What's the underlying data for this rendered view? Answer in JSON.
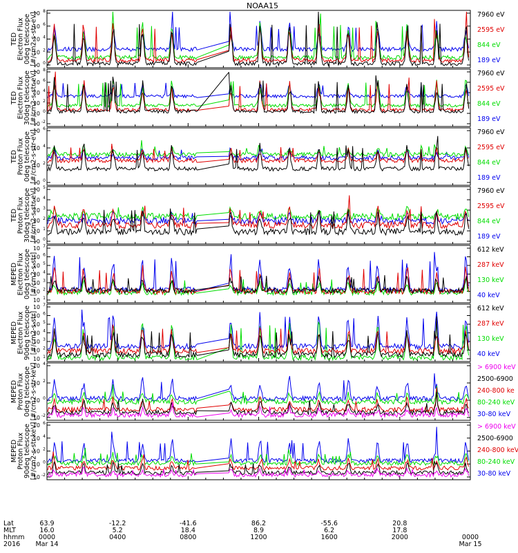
{
  "title": "NOAA15",
  "colors": {
    "black": "#000000",
    "red": "#e00000",
    "green": "#00dd00",
    "blue": "#0000ee",
    "magenta": "#ee00ee"
  },
  "panels": [
    {
      "ylabel": [
        "TED",
        "Electron Flux",
        "0deg telescope",
        "[#/cm2-s-str-eV]"
      ],
      "ticks": [
        "10",
        "10",
        "10",
        "10",
        "10"
      ],
      "exps": [
        "8",
        "6",
        "4",
        "2",
        "0"
      ],
      "extra_top": "",
      "legend": [
        {
          "text": "7960 eV",
          "color": "black"
        },
        {
          "text": "2595 eV",
          "color": "red"
        },
        {
          "text": "844 eV",
          "color": "green"
        },
        {
          "text": "189 eV",
          "color": "blue"
        }
      ]
    },
    {
      "ylabel": [
        "TED",
        "Electron Flux",
        "30deg telescope",
        "[#/cm2-s-str-eV]"
      ],
      "ticks": [
        "10",
        "10",
        "10",
        "10",
        "10",
        "10"
      ],
      "exps": [
        "8",
        "6",
        "4",
        "2",
        "0",
        "-2"
      ],
      "legend": [
        {
          "text": "7960 eV",
          "color": "black"
        },
        {
          "text": "2595 eV",
          "color": "red"
        },
        {
          "text": "844 eV",
          "color": "green"
        },
        {
          "text": "189 eV",
          "color": "blue"
        }
      ]
    },
    {
      "ylabel": [
        "TED",
        "Proton Flux",
        "0deg telescope",
        "[#/cm2-s-str-eV]"
      ],
      "ticks": [
        "10",
        "10",
        "10",
        "10"
      ],
      "exps": [
        "6",
        "4",
        "2",
        "0"
      ],
      "legend": [
        {
          "text": "7960 eV",
          "color": "black"
        },
        {
          "text": "2595 eV",
          "color": "red"
        },
        {
          "text": "844 eV",
          "color": "green"
        },
        {
          "text": "189 eV",
          "color": "blue"
        }
      ]
    },
    {
      "ylabel": [
        "TED",
        "Proton Flux",
        "30deg telescope",
        "[#/cm2-s-str-eV]"
      ],
      "ticks": [
        "10",
        "10",
        "10",
        "10",
        "10",
        "10"
      ],
      "exps": [
        "5",
        "4",
        "3",
        "2",
        "1",
        "0"
      ],
      "legend": [
        {
          "text": "7960 eV",
          "color": "black"
        },
        {
          "text": "2595 eV",
          "color": "red"
        },
        {
          "text": "844 eV",
          "color": "green"
        },
        {
          "text": "189 eV",
          "color": "blue"
        }
      ]
    },
    {
      "ylabel": [
        "MEPED",
        "Electron Flux",
        "0deg telescope",
        "[#/cm2-s-str]"
      ],
      "ticks": [
        "10",
        "10",
        "10",
        "10",
        "10",
        "10",
        "10"
      ],
      "exps": [
        "7",
        "6",
        "5",
        "4",
        "3",
        "2",
        "1"
      ],
      "legend": [
        {
          "text": "612 keV",
          "color": "black"
        },
        {
          "text": "287 keV",
          "color": "red"
        },
        {
          "text": "130 keV",
          "color": "green"
        },
        {
          "text": "40 keV",
          "color": "blue"
        }
      ]
    },
    {
      "ylabel": [
        "MEPED",
        "Electron Flux",
        "90deg telescope",
        "[#/cm2-s-str]"
      ],
      "ticks": [
        "10",
        "10",
        "10",
        "10",
        "10",
        "10",
        "10"
      ],
      "exps": [
        "7",
        "6",
        "5",
        "4",
        "3",
        "2",
        "1"
      ],
      "legend": [
        {
          "text": "612 keV",
          "color": "black"
        },
        {
          "text": "287 keV",
          "color": "red"
        },
        {
          "text": "130 keV",
          "color": "green"
        },
        {
          "text": "40 keV",
          "color": "blue"
        }
      ]
    },
    {
      "ylabel": [
        "MEPED",
        "Proton Flux",
        "0deg telescope",
        "[#/cm2-s-str-keV]"
      ],
      "ticks": [
        "10",
        "10",
        "10",
        "10"
      ],
      "exps": [
        "4",
        "2",
        "0",
        "-2"
      ],
      "legend": [
        {
          "text": "> 6900 keV",
          "color": "magenta"
        },
        {
          "text": "2500-6900",
          "color": "black"
        },
        {
          "text": "240-800 ke",
          "color": "red"
        },
        {
          "text": "80-240 keV",
          "color": "green"
        },
        {
          "text": "30-80 keV",
          "color": "blue"
        }
      ]
    },
    {
      "ylabel": [
        "MEPED",
        "Proton Flux",
        "90deg telescope",
        "[#/cm2-s-str-keV]"
      ],
      "ticks": [
        "10",
        "10",
        "10",
        "10",
        "10"
      ],
      "exps": [
        "6",
        "4",
        "2",
        "0",
        "-2"
      ],
      "legend": [
        {
          "text": "> 6900 keV",
          "color": "magenta"
        },
        {
          "text": "2500-6900",
          "color": "black"
        },
        {
          "text": "240-800 keV",
          "color": "red"
        },
        {
          "text": "80-240 keV",
          "color": "green"
        },
        {
          "text": "30-80 keV",
          "color": "blue"
        }
      ]
    }
  ],
  "xaxis": {
    "row_labels": [
      "Lat",
      "MLT",
      "hhmm",
      "2016"
    ],
    "columns": [
      {
        "lat": "63.9",
        "mlt": "16.0",
        "hhmm": "0000",
        "date": "Mar 14"
      },
      {
        "lat": "-12.2",
        "mlt": "5.2",
        "hhmm": "0400",
        "date": ""
      },
      {
        "lat": "-41.6",
        "mlt": "18.4",
        "hhmm": "0800",
        "date": ""
      },
      {
        "lat": "86.2",
        "mlt": "8.9",
        "hhmm": "1200",
        "date": ""
      },
      {
        "lat": "-55.6",
        "mlt": "6.2",
        "hhmm": "1600",
        "date": ""
      },
      {
        "lat": "20.8",
        "mlt": "17.8",
        "hhmm": "2000",
        "date": ""
      },
      {
        "lat": "",
        "mlt": "",
        "hhmm": "0000",
        "date": "Mar 15"
      }
    ]
  },
  "chart_data": {
    "type": "line",
    "title": "NOAA15",
    "x_unit": "hours since 2016 Mar 14 00:00 UT",
    "xlim": [
      0,
      24
    ],
    "data_gap_hours": [
      9.0,
      10.0
    ],
    "y_scale": "log",
    "panels": [
      {
        "title": "TED Electron Flux 0deg telescope",
        "ylim_exp": [
          0,
          8
        ],
        "series": [
          {
            "name": "7960 eV",
            "color": "#000000",
            "baseline_exp": 0.4,
            "peak_exp": 7.5
          },
          {
            "name": "2595 eV",
            "color": "#e00000",
            "baseline_exp": 0.9,
            "peak_exp": 7.0
          },
          {
            "name": "844 eV",
            "color": "#00dd00",
            "baseline_exp": 1.3,
            "peak_exp": 7.0
          },
          {
            "name": "189 eV",
            "color": "#0000ee",
            "baseline_exp": 2.5,
            "peak_exp": 6.5
          }
        ]
      },
      {
        "title": "TED Electron Flux 30deg telescope",
        "ylim_exp": [
          -2,
          8
        ],
        "series": [
          {
            "name": "7960 eV",
            "color": "#000000",
            "baseline_exp": 0.5,
            "peak_exp": 7.0
          },
          {
            "name": "2595 eV",
            "color": "#e00000",
            "baseline_exp": 0.8,
            "peak_exp": 6.5
          },
          {
            "name": "844 eV",
            "color": "#00dd00",
            "baseline_exp": 1.6,
            "peak_exp": 6.5
          },
          {
            "name": "189 eV",
            "color": "#0000ee",
            "baseline_exp": 3.3,
            "peak_exp": 6.0
          }
        ]
      },
      {
        "title": "TED Proton Flux 0deg telescope",
        "ylim_exp": [
          -2,
          6
        ],
        "series": [
          {
            "name": "7960 eV",
            "color": "#000000",
            "baseline_exp": 0.2,
            "peak_exp": 4.0
          },
          {
            "name": "2595 eV",
            "color": "#e00000",
            "baseline_exp": 1.4,
            "peak_exp": 3.5
          },
          {
            "name": "844 eV",
            "color": "#00dd00",
            "baseline_exp": 2.3,
            "peak_exp": 3.6
          },
          {
            "name": "189 eV",
            "color": "#0000ee",
            "baseline_exp": 1.8,
            "peak_exp": 3.2
          }
        ]
      },
      {
        "title": "TED Proton Flux 30deg telescope",
        "ylim_exp": [
          0,
          5
        ],
        "series": [
          {
            "name": "7960 eV",
            "color": "#000000",
            "baseline_exp": 1.0,
            "peak_exp": 3.2
          },
          {
            "name": "2595 eV",
            "color": "#e00000",
            "baseline_exp": 1.6,
            "peak_exp": 3.4
          },
          {
            "name": "844 eV",
            "color": "#00dd00",
            "baseline_exp": 2.4,
            "peak_exp": 3.2
          },
          {
            "name": "189 eV",
            "color": "#0000ee",
            "baseline_exp": 2.0,
            "peak_exp": 2.8
          }
        ]
      },
      {
        "title": "MEPED Electron Flux 0deg telescope",
        "ylim_exp": [
          1,
          7
        ],
        "series": [
          {
            "name": "612 keV",
            "color": "#000000",
            "baseline_exp": 2.2,
            "peak_exp": 4.0
          },
          {
            "name": "287 keV",
            "color": "#e00000",
            "baseline_exp": 2.1,
            "peak_exp": 5.0
          },
          {
            "name": "130 keV",
            "color": "#00dd00",
            "baseline_exp": 2.0,
            "peak_exp": 3.5
          },
          {
            "name": "40 keV",
            "color": "#0000ee",
            "baseline_exp": 2.3,
            "peak_exp": 6.5
          }
        ]
      },
      {
        "title": "MEPED Electron Flux 90deg telescope",
        "ylim_exp": [
          1,
          7
        ],
        "series": [
          {
            "name": "612 keV",
            "color": "#000000",
            "baseline_exp": 1.6,
            "peak_exp": 4.5
          },
          {
            "name": "287 keV",
            "color": "#e00000",
            "baseline_exp": 2.0,
            "peak_exp": 5.0
          },
          {
            "name": "130 keV",
            "color": "#00dd00",
            "baseline_exp": 1.3,
            "peak_exp": 5.5
          },
          {
            "name": "40 keV",
            "color": "#0000ee",
            "baseline_exp": 2.5,
            "peak_exp": 6.5
          }
        ]
      },
      {
        "title": "MEPED Proton Flux 0deg telescope",
        "ylim_exp": [
          -2,
          5
        ],
        "series": [
          {
            "name": "> 6900 keV",
            "color": "#ee00ee",
            "baseline_exp": -1.5,
            "peak_exp": -0.5
          },
          {
            "name": "2500-6900",
            "color": "#000000",
            "baseline_exp": -1.2,
            "peak_exp": 0.5
          },
          {
            "name": "240-800 keV",
            "color": "#e00000",
            "baseline_exp": -0.8,
            "peak_exp": 0.8
          },
          {
            "name": "80-240 keV",
            "color": "#00dd00",
            "baseline_exp": 0.2,
            "peak_exp": 1.5
          },
          {
            "name": "30-80 keV",
            "color": "#0000ee",
            "baseline_exp": 0.6,
            "peak_exp": 3.5
          }
        ]
      },
      {
        "title": "MEPED Proton Flux 90deg telescope",
        "ylim_exp": [
          -2,
          6
        ],
        "series": [
          {
            "name": "> 6900 keV",
            "color": "#ee00ee",
            "baseline_exp": -1.5,
            "peak_exp": -0.5
          },
          {
            "name": "2500-6900",
            "color": "#000000",
            "baseline_exp": -1.2,
            "peak_exp": 0.5
          },
          {
            "name": "240-800 keV",
            "color": "#e00000",
            "baseline_exp": -0.5,
            "peak_exp": 1.0
          },
          {
            "name": "80-240 keV",
            "color": "#00dd00",
            "baseline_exp": 0.2,
            "peak_exp": 1.8
          },
          {
            "name": "30-80 keV",
            "color": "#0000ee",
            "baseline_exp": 0.6,
            "peak_exp": 4.0
          }
        ]
      }
    ]
  }
}
